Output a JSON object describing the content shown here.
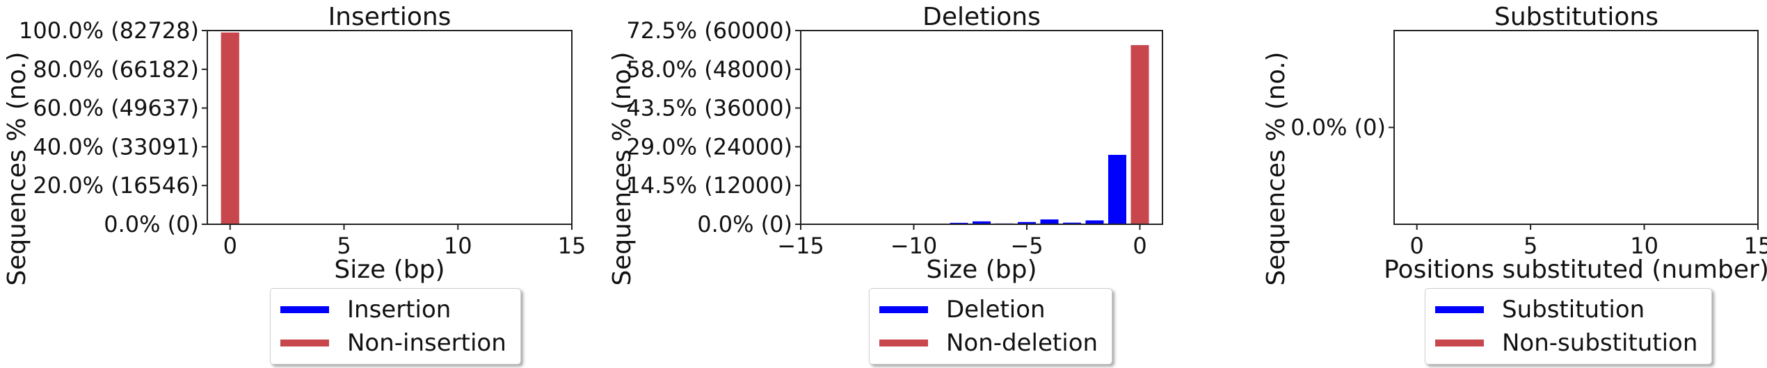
{
  "colors": {
    "event": "#0000ff",
    "non_event": "#c8474d"
  },
  "chart_data": [
    {
      "type": "bar",
      "title": "Insertions",
      "xlabel": "Size (bp)",
      "ylabel": "Sequences % (no.)",
      "xlim": [
        -1,
        15
      ],
      "ylim": [
        0,
        82728
      ],
      "xticks": [
        "0",
        "5",
        "10",
        "15"
      ],
      "yticks": [
        "0.0% (0)",
        "20.0% (16546)",
        "40.0% (33091)",
        "60.0% (49637)",
        "80.0% (66182)",
        "100.0% (82728)"
      ],
      "series": [
        {
          "name": "Insertion",
          "x": [],
          "values": []
        },
        {
          "name": "Non-insertion",
          "x": [
            0
          ],
          "values": [
            81900
          ]
        }
      ],
      "legend": [
        "Insertion",
        "Non-insertion"
      ],
      "legend_position": "below"
    },
    {
      "type": "bar",
      "title": "Deletions",
      "xlabel": "Size (bp)",
      "ylabel": "Sequences % (no.)",
      "xlim": [
        -15,
        1
      ],
      "ylim": [
        0,
        60000
      ],
      "xticks": [
        "−15",
        "−10",
        "−5",
        "0"
      ],
      "yticks": [
        "0.0% (0)",
        "14.5% (12000)",
        "29.0% (24000)",
        "43.5% (36000)",
        "58.0% (48000)",
        "72.5% (60000)"
      ],
      "series": [
        {
          "name": "Deletion",
          "x": [
            -10,
            -9,
            -8,
            -7,
            -6,
            -5,
            -4,
            -3,
            -2,
            -1
          ],
          "values": [
            150,
            200,
            450,
            900,
            250,
            700,
            1500,
            500,
            1200,
            21500
          ]
        },
        {
          "name": "Non-deletion",
          "x": [
            0
          ],
          "values": [
            55500
          ]
        }
      ],
      "legend": [
        "Deletion",
        "Non-deletion"
      ],
      "legend_position": "below"
    },
    {
      "type": "bar",
      "title": "Substitutions",
      "xlabel": "Positions substituted (number)",
      "ylabel": "Sequences % (no.)",
      "xlim": [
        -1,
        15
      ],
      "xticks": [
        "0",
        "5",
        "10",
        "15"
      ],
      "yticks": [
        "0.0% (0)"
      ],
      "series": [
        {
          "name": "Substitution",
          "x": [],
          "values": []
        },
        {
          "name": "Non-substitution",
          "x": [],
          "values": []
        }
      ],
      "legend": [
        "Substitution",
        "Non-substitution"
      ],
      "legend_position": "below"
    }
  ]
}
